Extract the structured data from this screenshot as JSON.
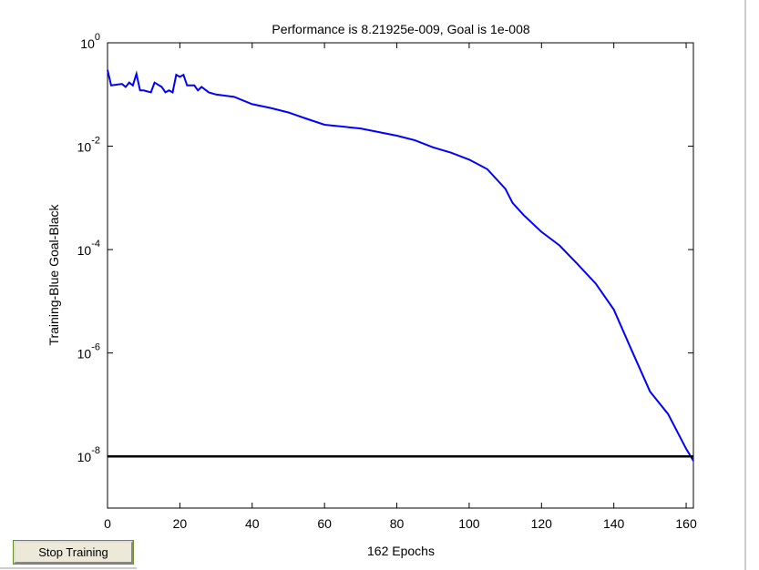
{
  "chart_data": {
    "type": "line",
    "title": "Performance is 8.21925e-009, Goal is 1e-008",
    "xlabel": "162 Epochs",
    "ylabel": "Training-Blue  Goal-Black",
    "ylog": true,
    "grid": false,
    "xlim": [
      0,
      162
    ],
    "ylim": [
      1e-09,
      1
    ],
    "xticks": [
      0,
      20,
      40,
      60,
      80,
      100,
      120,
      140,
      160
    ],
    "yticks": [
      {
        "value": 1,
        "label": "10",
        "exponent": "0"
      },
      {
        "value": 0.01,
        "label": "10",
        "exponent": "-2"
      },
      {
        "value": 0.0001,
        "label": "10",
        "exponent": "-4"
      },
      {
        "value": 1e-06,
        "label": "10",
        "exponent": "-6"
      },
      {
        "value": 1e-08,
        "label": "10",
        "exponent": "-8"
      }
    ],
    "series": [
      {
        "color": "#0000ff",
        "x": [
          0,
          1,
          4,
          5,
          6,
          7,
          8,
          9,
          10,
          12,
          13,
          15,
          16,
          17,
          18,
          19,
          20,
          21,
          22,
          24,
          25,
          26,
          28,
          30,
          35,
          40,
          45,
          50,
          55,
          60,
          70,
          80,
          85,
          90,
          95,
          100,
          105,
          110,
          112,
          115,
          120,
          125,
          130,
          135,
          140,
          145,
          150,
          155,
          160,
          162
        ],
        "values": [
          0.3,
          0.15,
          0.16,
          0.14,
          0.17,
          0.15,
          0.25,
          0.12,
          0.12,
          0.11,
          0.17,
          0.14,
          0.11,
          0.12,
          0.11,
          0.24,
          0.22,
          0.24,
          0.15,
          0.15,
          0.12,
          0.14,
          0.11,
          0.1,
          0.09,
          0.065,
          0.055,
          0.045,
          0.034,
          0.026,
          0.022,
          0.016,
          0.013,
          0.0095,
          0.0075,
          0.0055,
          0.0036,
          0.0015,
          0.0008,
          0.00047,
          0.00022,
          0.00012,
          5.2e-05,
          2.2e-05,
          6.9e-06,
          1.1e-06,
          1.8e-07,
          6.6e-08,
          1.4e-08,
          8.2e-09
        ]
      },
      {
        "color": "#000000",
        "x": [
          0,
          162
        ],
        "values": [
          1e-08,
          1e-08
        ]
      }
    ],
    "button": "Stop Training"
  }
}
